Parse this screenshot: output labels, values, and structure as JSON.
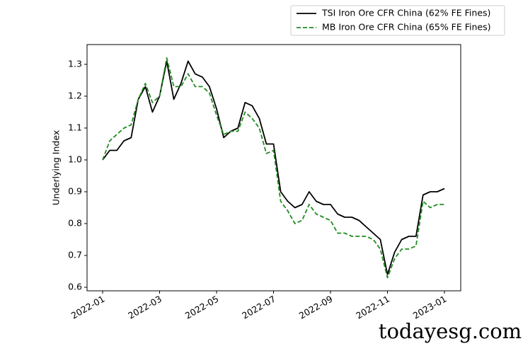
{
  "chart_data": {
    "type": "line",
    "ylabel": "Underlying Index",
    "watermark": "todayesg.com",
    "categories": [
      "2022-01",
      null,
      null,
      null,
      null,
      null,
      null,
      null,
      "2022-03",
      null,
      null,
      null,
      null,
      null,
      null,
      null,
      "2022-05",
      null,
      null,
      null,
      null,
      null,
      null,
      null,
      "2022-07",
      null,
      null,
      null,
      null,
      null,
      null,
      null,
      "2022-09",
      null,
      null,
      null,
      null,
      null,
      null,
      null,
      "2022-11",
      null,
      null,
      null,
      null,
      null,
      null,
      null,
      "2023-01"
    ],
    "series": [
      {
        "name": "TSI Iron Ore CFR China (62% FE Fines)",
        "color": "#000000",
        "linestyle": "solid",
        "values": [
          1.0,
          1.03,
          1.03,
          1.06,
          1.07,
          1.19,
          1.23,
          1.15,
          1.2,
          1.31,
          1.19,
          1.24,
          1.31,
          1.27,
          1.26,
          1.23,
          1.16,
          1.07,
          1.09,
          1.1,
          1.18,
          1.17,
          1.13,
          1.05,
          1.05,
          0.9,
          0.87,
          0.85,
          0.86,
          0.9,
          0.87,
          0.86,
          0.86,
          0.83,
          0.82,
          0.82,
          0.81,
          0.79,
          0.77,
          0.75,
          0.64,
          0.71,
          0.75,
          0.76,
          0.76,
          0.89,
          0.9,
          0.9,
          0.91
        ]
      },
      {
        "name": "MB Iron Ore CFR China (65% FE Fines)",
        "color": "#228b22",
        "linestyle": "dashed",
        "values": [
          1.0,
          1.06,
          1.08,
          1.1,
          1.11,
          1.19,
          1.24,
          1.18,
          1.2,
          1.32,
          1.23,
          1.23,
          1.27,
          1.23,
          1.23,
          1.21,
          1.14,
          1.08,
          1.09,
          1.09,
          1.15,
          1.13,
          1.1,
          1.02,
          1.03,
          0.87,
          0.84,
          0.8,
          0.81,
          0.86,
          0.83,
          0.82,
          0.81,
          0.77,
          0.77,
          0.76,
          0.76,
          0.76,
          0.75,
          0.72,
          0.63,
          0.69,
          0.72,
          0.72,
          0.73,
          0.87,
          0.85,
          0.86,
          0.86
        ]
      }
    ],
    "ylim": [
      0.589,
      1.362
    ],
    "yticks": [
      0.6,
      0.7,
      0.8,
      0.9,
      {
        "value": 1,
        "label": "1.0"
      },
      1.1,
      1.2,
      1.3
    ],
    "legend": "upper right"
  }
}
